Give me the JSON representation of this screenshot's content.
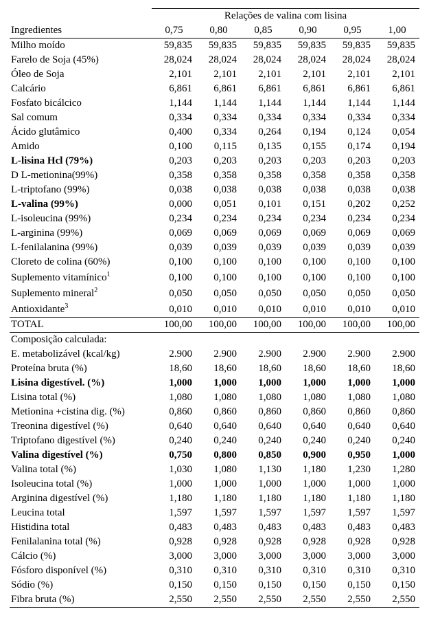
{
  "groupHeader": "Relações de valina com lisina",
  "labelHeader": "Ingredientes",
  "ratios": [
    "0,75",
    "0,80",
    "0,85",
    "0,90",
    "0,95",
    "1,00"
  ],
  "ingredients": [
    {
      "name": "Milho moído",
      "v": [
        "59,835",
        "59,835",
        "59,835",
        "59,835",
        "59,835",
        "59,835"
      ],
      "bold": false
    },
    {
      "name": "Farelo de Soja (45%)",
      "v": [
        "28,024",
        "28,024",
        "28,024",
        "28,024",
        "28,024",
        "28,024"
      ],
      "bold": false
    },
    {
      "name": "Óleo de Soja",
      "v": [
        "2,101",
        "2,101",
        "2,101",
        "2,101",
        "2,101",
        "2,101"
      ],
      "bold": false
    },
    {
      "name": "Calcário",
      "v": [
        "6,861",
        "6,861",
        "6,861",
        "6,861",
        "6,861",
        "6,861"
      ],
      "bold": false
    },
    {
      "name": "Fosfato bicálcico",
      "v": [
        "1,144",
        "1,144",
        "1,144",
        "1,144",
        "1,144",
        "1,144"
      ],
      "bold": false
    },
    {
      "name": "Sal comum",
      "v": [
        "0,334",
        "0,334",
        "0,334",
        "0,334",
        "0,334",
        "0,334"
      ],
      "bold": false
    },
    {
      "name": "Ácido glutâmico",
      "v": [
        "0,400",
        "0,334",
        "0,264",
        "0,194",
        "0,124",
        "0,054"
      ],
      "bold": false
    },
    {
      "name": "Amido",
      "v": [
        "0,100",
        "0,115",
        "0,135",
        "0,155",
        "0,174",
        "0,194"
      ],
      "bold": false
    },
    {
      "name": "L-lisina Hcl (79%)",
      "v": [
        "0,203",
        "0,203",
        "0,203",
        "0,203",
        "0,203",
        "0,203"
      ],
      "bold": true
    },
    {
      "name": "D L-metionina(99%)",
      "v": [
        "0,358",
        "0,358",
        "0,358",
        "0,358",
        "0,358",
        "0,358"
      ],
      "bold": false
    },
    {
      "name": "L-triptofano (99%)",
      "v": [
        "0,038",
        "0,038",
        "0,038",
        "0,038",
        "0,038",
        "0,038"
      ],
      "bold": false
    },
    {
      "name": "L-valina (99%)",
      "v": [
        "0,000",
        "0,051",
        "0,101",
        "0,151",
        "0,202",
        "0,252"
      ],
      "bold": true
    },
    {
      "name": "L-isoleucina (99%)",
      "v": [
        "0,234",
        "0,234",
        "0,234",
        "0,234",
        "0,234",
        "0,234"
      ],
      "bold": false
    },
    {
      "name": "L-arginina (99%)",
      "v": [
        "0,069",
        "0,069",
        "0,069",
        "0,069",
        "0,069",
        "0,069"
      ],
      "bold": false
    },
    {
      "name": "L-fenilalanina (99%)",
      "v": [
        "0,039",
        "0,039",
        "0,039",
        "0,039",
        "0,039",
        "0,039"
      ],
      "bold": false
    },
    {
      "name": "Cloreto de colina (60%)",
      "v": [
        "0,100",
        "0,100",
        "0,100",
        "0,100",
        "0,100",
        "0,100"
      ],
      "bold": false
    },
    {
      "name": "Suplemento vitamínico",
      "sup": "1",
      "v": [
        "0,100",
        "0,100",
        "0,100",
        "0,100",
        "0,100",
        "0,100"
      ],
      "bold": false
    },
    {
      "name": "Suplemento mineral",
      "sup": "2",
      "v": [
        "0,050",
        "0,050",
        "0,050",
        "0,050",
        "0,050",
        "0,050"
      ],
      "bold": false
    },
    {
      "name": "Antioxidante",
      "sup": "3",
      "v": [
        "0,010",
        "0,010",
        "0,010",
        "0,010",
        "0,010",
        "0,010"
      ],
      "bold": false
    }
  ],
  "totalLabel": "TOTAL",
  "totalValues": [
    "100,00",
    "100,00",
    "100,00",
    "100,00",
    "100,00",
    "100,00"
  ],
  "compHeader": "Composição calculada:",
  "composition": [
    {
      "name": "E. metabolizável (kcal/kg)",
      "v": [
        "2.900",
        "2.900",
        "2.900",
        "2.900",
        "2.900",
        "2.900"
      ],
      "bold": false
    },
    {
      "name": "Proteína bruta (%)",
      "v": [
        "18,60",
        "18,60",
        "18,60",
        "18,60",
        "18,60",
        "18,60"
      ],
      "bold": false
    },
    {
      "name": "Lisina digestível. (%)",
      "v": [
        "1,000",
        "1,000",
        "1,000",
        "1,000",
        "1,000",
        "1,000"
      ],
      "bold": true
    },
    {
      "name": "Lisina total (%)",
      "v": [
        "1,080",
        "1,080",
        "1,080",
        "1,080",
        "1,080",
        "1,080"
      ],
      "bold": false
    },
    {
      "name": "Metionina +cistina dig. (%)",
      "v": [
        "0,860",
        "0,860",
        "0,860",
        "0,860",
        "0,860",
        "0,860"
      ],
      "bold": false
    },
    {
      "name": "Treonina digestível (%)",
      "v": [
        "0,640",
        "0,640",
        "0,640",
        "0,640",
        "0,640",
        "0,640"
      ],
      "bold": false
    },
    {
      "name": "Triptofano digestível (%)",
      "v": [
        "0,240",
        "0,240",
        "0,240",
        "0,240",
        "0,240",
        "0,240"
      ],
      "bold": false
    },
    {
      "name": "Valina digestível (%)",
      "v": [
        "0,750",
        "0,800",
        "0,850",
        "0,900",
        "0,950",
        "1,000"
      ],
      "bold": true
    },
    {
      "name": "Valina total (%)",
      "v": [
        "1,030",
        "1,080",
        "1,130",
        "1,180",
        "1,230",
        "1,280"
      ],
      "bold": false
    },
    {
      "name": "Isoleucina total (%)",
      "v": [
        "1,000",
        "1,000",
        "1,000",
        "1,000",
        "1,000",
        "1,000"
      ],
      "bold": false
    },
    {
      "name": "Arginina digestível (%)",
      "v": [
        "1,180",
        "1,180",
        "1,180",
        "1,180",
        "1,180",
        "1,180"
      ],
      "bold": false
    },
    {
      "name": "Leucina total",
      "v": [
        "1,597",
        "1,597",
        "1,597",
        "1,597",
        "1,597",
        "1,597"
      ],
      "bold": false
    },
    {
      "name": "Histidina total",
      "v": [
        "0,483",
        "0,483",
        "0,483",
        "0,483",
        "0,483",
        "0,483"
      ],
      "bold": false
    },
    {
      "name": "Fenilalanina total (%)",
      "v": [
        "0,928",
        "0,928",
        "0,928",
        "0,928",
        "0,928",
        "0,928"
      ],
      "bold": false
    },
    {
      "name": "Cálcio (%)",
      "v": [
        "3,000",
        "3,000",
        "3,000",
        "3,000",
        "3,000",
        "3,000"
      ],
      "bold": false
    },
    {
      "name": "Fósforo disponível (%)",
      "v": [
        "0,310",
        "0,310",
        "0,310",
        "0,310",
        "0,310",
        "0,310"
      ],
      "bold": false
    },
    {
      "name": "Sódio (%)",
      "v": [
        "0,150",
        "0,150",
        "0,150",
        "0,150",
        "0,150",
        "0,150"
      ],
      "bold": false
    },
    {
      "name": "Fibra bruta (%)",
      "v": [
        "2,550",
        "2,550",
        "2,550",
        "2,550",
        "2,550",
        "2,550"
      ],
      "bold": false
    }
  ],
  "colWidths": {
    "label": "207",
    "num": "65"
  }
}
